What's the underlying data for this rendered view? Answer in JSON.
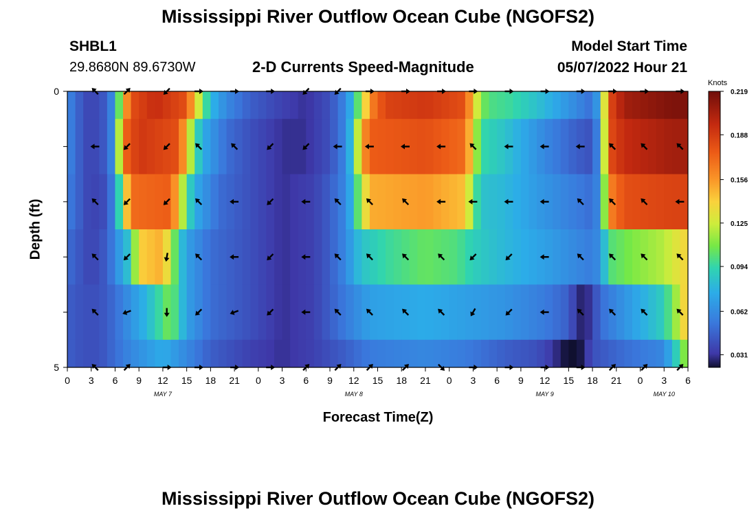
{
  "header": {
    "title": "Mississippi River Outflow Ocean Cube (NGOFS2)",
    "station_id": "SHBL1",
    "station_coords": "29.8680N  89.6730W",
    "subtitle": "2-D Currents Speed-Magnitude",
    "model_start_label": "Model Start Time",
    "model_start_value": "05/07/2022 Hour 21"
  },
  "footer": {
    "title": "Mississippi River Outflow Ocean Cube (NGOFS2)"
  },
  "chart_data": {
    "type": "heatmap",
    "title": "2-D Currents Speed-Magnitude",
    "xlabel": "Forecast Time(Z)",
    "ylabel": "Depth (ft)",
    "colorbar_label": "Knots",
    "colorbar_ticks": [
      "0.219",
      "0.188",
      "0.156",
      "0.125",
      "0.094",
      "0.062",
      "0.031"
    ],
    "colorbar_range": [
      0.022,
      0.219
    ],
    "y_tick_labels": [
      "0",
      "5"
    ],
    "y_range": [
      0,
      5
    ],
    "x_range": [
      0,
      78
    ],
    "x_tick_values": [
      0,
      3,
      6,
      9,
      12,
      15,
      18,
      21,
      24,
      27,
      30,
      33,
      36,
      39,
      42,
      45,
      48,
      51,
      54,
      57,
      60,
      63,
      66,
      69,
      72,
      75,
      78
    ],
    "x_tick_labels": [
      "0",
      "3",
      "6",
      "9",
      "12",
      "15",
      "18",
      "21",
      "0",
      "3",
      "6",
      "9",
      "12",
      "15",
      "18",
      "21",
      "0",
      "3",
      "6",
      "9",
      "12",
      "15",
      "18",
      "21",
      "0",
      "3",
      "6"
    ],
    "date_labels": [
      {
        "label": "MAY 7",
        "hour": 12
      },
      {
        "label": "MAY 8",
        "hour": 36
      },
      {
        "label": "MAY 9",
        "hour": 60
      },
      {
        "label": "MAY 10",
        "hour": 75
      }
    ],
    "layers": [
      {
        "depth_range": [
          0,
          0.5
        ],
        "breakpoints": [
          [
            0,
            0.06
          ],
          [
            1,
            0.05
          ],
          [
            2,
            0.04
          ],
          [
            3,
            0.035
          ],
          [
            5,
            0.045
          ],
          [
            6,
            0.07
          ],
          [
            7,
            0.14
          ],
          [
            8,
            0.18
          ],
          [
            11,
            0.195
          ],
          [
            15,
            0.18
          ],
          [
            16,
            0.14
          ],
          [
            17,
            0.11
          ],
          [
            18,
            0.08
          ],
          [
            20,
            0.06
          ],
          [
            23,
            0.045
          ],
          [
            27,
            0.035
          ],
          [
            30,
            0.03
          ],
          [
            33,
            0.04
          ],
          [
            35,
            0.06
          ],
          [
            36,
            0.085
          ],
          [
            37,
            0.12
          ],
          [
            38,
            0.16
          ],
          [
            40,
            0.185
          ],
          [
            45,
            0.19
          ],
          [
            50,
            0.18
          ],
          [
            51,
            0.14
          ],
          [
            52,
            0.11
          ],
          [
            53,
            0.1
          ],
          [
            56,
            0.095
          ],
          [
            60,
            0.08
          ],
          [
            64,
            0.06
          ],
          [
            66,
            0.05
          ],
          [
            67,
            0.08
          ],
          [
            68,
            0.18
          ],
          [
            70,
            0.205
          ],
          [
            76,
            0.215
          ],
          [
            78,
            0.215
          ]
        ]
      },
      {
        "depth_range": [
          0.5,
          1.5
        ],
        "breakpoints": [
          [
            0,
            0.06
          ],
          [
            1,
            0.05
          ],
          [
            2,
            0.04
          ],
          [
            3,
            0.035
          ],
          [
            5,
            0.045
          ],
          [
            6,
            0.07
          ],
          [
            7,
            0.17
          ],
          [
            9,
            0.19
          ],
          [
            14,
            0.18
          ],
          [
            15,
            0.14
          ],
          [
            16,
            0.1
          ],
          [
            17,
            0.075
          ],
          [
            20,
            0.05
          ],
          [
            23,
            0.04
          ],
          [
            27,
            0.03
          ],
          [
            30,
            0.03
          ],
          [
            33,
            0.04
          ],
          [
            35,
            0.06
          ],
          [
            36,
            0.095
          ],
          [
            37,
            0.15
          ],
          [
            38,
            0.175
          ],
          [
            45,
            0.18
          ],
          [
            50,
            0.17
          ],
          [
            51,
            0.13
          ],
          [
            52,
            0.095
          ],
          [
            55,
            0.085
          ],
          [
            60,
            0.06
          ],
          [
            64,
            0.045
          ],
          [
            66,
            0.04
          ],
          [
            67,
            0.07
          ],
          [
            68,
            0.18
          ],
          [
            70,
            0.195
          ],
          [
            76,
            0.205
          ],
          [
            78,
            0.205
          ]
        ]
      },
      {
        "depth_range": [
          1.5,
          2.5
        ],
        "breakpoints": [
          [
            0,
            0.055
          ],
          [
            1,
            0.05
          ],
          [
            2,
            0.04
          ],
          [
            3,
            0.035
          ],
          [
            5,
            0.04
          ],
          [
            6,
            0.065
          ],
          [
            7,
            0.12
          ],
          [
            8,
            0.17
          ],
          [
            13,
            0.175
          ],
          [
            14,
            0.14
          ],
          [
            15,
            0.1
          ],
          [
            16,
            0.075
          ],
          [
            19,
            0.05
          ],
          [
            23,
            0.04
          ],
          [
            27,
            0.03
          ],
          [
            31,
            0.035
          ],
          [
            33,
            0.045
          ],
          [
            35,
            0.06
          ],
          [
            36,
            0.085
          ],
          [
            37,
            0.12
          ],
          [
            38,
            0.15
          ],
          [
            45,
            0.155
          ],
          [
            50,
            0.145
          ],
          [
            51,
            0.105
          ],
          [
            52,
            0.085
          ],
          [
            55,
            0.08
          ],
          [
            60,
            0.065
          ],
          [
            64,
            0.055
          ],
          [
            66,
            0.05
          ],
          [
            67,
            0.065
          ],
          [
            68,
            0.16
          ],
          [
            70,
            0.18
          ],
          [
            76,
            0.185
          ],
          [
            78,
            0.185
          ]
        ]
      },
      {
        "depth_range": [
          2.5,
          3.5
        ],
        "breakpoints": [
          [
            0,
            0.05
          ],
          [
            1,
            0.045
          ],
          [
            2,
            0.04
          ],
          [
            3,
            0.035
          ],
          [
            5,
            0.045
          ],
          [
            6,
            0.06
          ],
          [
            8,
            0.09
          ],
          [
            9,
            0.14
          ],
          [
            12,
            0.15
          ],
          [
            13,
            0.12
          ],
          [
            14,
            0.09
          ],
          [
            15,
            0.07
          ],
          [
            18,
            0.05
          ],
          [
            23,
            0.04
          ],
          [
            27,
            0.03
          ],
          [
            31,
            0.035
          ],
          [
            33,
            0.045
          ],
          [
            35,
            0.06
          ],
          [
            36,
            0.075
          ],
          [
            37,
            0.085
          ],
          [
            40,
            0.095
          ],
          [
            45,
            0.105
          ],
          [
            49,
            0.1
          ],
          [
            51,
            0.09
          ],
          [
            55,
            0.08
          ],
          [
            60,
            0.07
          ],
          [
            64,
            0.06
          ],
          [
            66,
            0.055
          ],
          [
            67,
            0.065
          ],
          [
            68,
            0.1
          ],
          [
            71,
            0.11
          ],
          [
            75,
            0.12
          ],
          [
            78,
            0.14
          ]
        ]
      },
      {
        "depth_range": [
          3.5,
          4.5
        ],
        "breakpoints": [
          [
            0,
            0.045
          ],
          [
            2,
            0.04
          ],
          [
            4,
            0.04
          ],
          [
            6,
            0.05
          ],
          [
            8,
            0.065
          ],
          [
            10,
            0.08
          ],
          [
            12,
            0.1
          ],
          [
            13,
            0.11
          ],
          [
            14,
            0.09
          ],
          [
            15,
            0.07
          ],
          [
            18,
            0.05
          ],
          [
            23,
            0.04
          ],
          [
            27,
            0.03
          ],
          [
            31,
            0.035
          ],
          [
            35,
            0.055
          ],
          [
            38,
            0.07
          ],
          [
            45,
            0.075
          ],
          [
            50,
            0.07
          ],
          [
            55,
            0.065
          ],
          [
            60,
            0.055
          ],
          [
            63,
            0.045
          ],
          [
            64,
            0.03
          ],
          [
            65,
            0.025
          ],
          [
            66,
            0.035
          ],
          [
            67,
            0.05
          ],
          [
            71,
            0.07
          ],
          [
            75,
            0.09
          ],
          [
            77,
            0.125
          ],
          [
            78,
            0.15
          ]
        ]
      },
      {
        "depth_range": [
          4.5,
          5
        ],
        "breakpoints": [
          [
            0,
            0.045
          ],
          [
            2,
            0.04
          ],
          [
            4,
            0.04
          ],
          [
            6,
            0.05
          ],
          [
            8,
            0.06
          ],
          [
            12,
            0.075
          ],
          [
            13,
            0.07
          ],
          [
            15,
            0.06
          ],
          [
            18,
            0.045
          ],
          [
            23,
            0.035
          ],
          [
            27,
            0.03
          ],
          [
            31,
            0.035
          ],
          [
            35,
            0.045
          ],
          [
            38,
            0.055
          ],
          [
            45,
            0.06
          ],
          [
            50,
            0.055
          ],
          [
            55,
            0.045
          ],
          [
            59,
            0.04
          ],
          [
            61,
            0.032
          ],
          [
            62,
            0.025
          ],
          [
            63,
            0.022
          ],
          [
            64,
            0.02
          ],
          [
            65,
            0.028
          ],
          [
            66,
            0.04
          ],
          [
            70,
            0.05
          ],
          [
            75,
            0.06
          ],
          [
            77,
            0.1
          ],
          [
            78,
            0.12
          ]
        ]
      }
    ],
    "arrows": {
      "x_hours": [
        3.5,
        7.5,
        12.5,
        16.5,
        21,
        25.5,
        30,
        34,
        38,
        42.5,
        47,
        51,
        55.5,
        60,
        64.5,
        68.5,
        72.5,
        77
      ],
      "depths": [
        0,
        1,
        2,
        3,
        4,
        5
      ],
      "directions_deg": [
        [
          135,
          45,
          225,
          0,
          0,
          0,
          225,
          225,
          0,
          0,
          0,
          0,
          0,
          0,
          0,
          0,
          0,
          0
        ],
        [
          180,
          225,
          225,
          135,
          135,
          225,
          225,
          180,
          180,
          180,
          180,
          135,
          180,
          180,
          180,
          135,
          135,
          135
        ],
        [
          135,
          225,
          225,
          135,
          180,
          225,
          180,
          135,
          135,
          135,
          180,
          180,
          180,
          180,
          135,
          135,
          135,
          180
        ],
        [
          135,
          225,
          260,
          135,
          180,
          225,
          180,
          135,
          135,
          135,
          135,
          225,
          225,
          180,
          135,
          135,
          135,
          135
        ],
        [
          135,
          200,
          270,
          225,
          200,
          225,
          180,
          135,
          135,
          135,
          135,
          240,
          225,
          180,
          135,
          135,
          135,
          135
        ],
        [
          135,
          45,
          0,
          0,
          0,
          0,
          45,
          45,
          45,
          45,
          315,
          0,
          0,
          0,
          0,
          45,
          45,
          45
        ]
      ]
    }
  }
}
